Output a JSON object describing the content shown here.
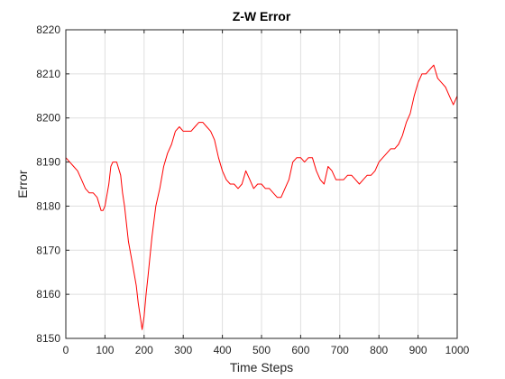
{
  "chart_data": {
    "type": "line",
    "title": "Z-W Error",
    "xlabel": "Time Steps",
    "ylabel": "Error",
    "xlim": [
      0,
      1000
    ],
    "ylim": [
      8150,
      8220
    ],
    "xticks": [
      0,
      100,
      200,
      300,
      400,
      500,
      600,
      700,
      800,
      900,
      1000
    ],
    "yticks": [
      8150,
      8160,
      8170,
      8180,
      8190,
      8200,
      8210,
      8220
    ],
    "grid": true,
    "legend": "none",
    "series_color": "#ff0000",
    "series": [
      {
        "x": [
          0,
          10,
          20,
          30,
          40,
          50,
          60,
          70,
          80,
          90,
          95,
          100,
          110,
          115,
          120,
          130,
          140,
          145,
          150,
          160,
          170,
          180,
          185,
          190,
          195,
          200,
          205,
          210,
          220,
          230,
          240,
          250,
          260,
          270,
          280,
          290,
          300,
          310,
          320,
          330,
          340,
          350,
          360,
          370,
          380,
          390,
          400,
          410,
          420,
          430,
          440,
          450,
          460,
          470,
          480,
          490,
          500,
          510,
          520,
          530,
          540,
          550,
          560,
          570,
          580,
          590,
          600,
          610,
          620,
          630,
          640,
          650,
          660,
          670,
          680,
          690,
          700,
          710,
          720,
          730,
          740,
          750,
          760,
          770,
          780,
          790,
          800,
          810,
          820,
          830,
          840,
          850,
          860,
          870,
          880,
          890,
          900,
          910,
          920,
          930,
          940,
          950,
          960,
          970,
          980,
          990,
          1000
        ],
        "y": [
          8191,
          8190,
          8189,
          8188,
          8186,
          8184,
          8183,
          8183,
          8182,
          8179,
          8179,
          8180,
          8185,
          8189,
          8190,
          8190,
          8187,
          8183,
          8180,
          8172,
          8167,
          8162,
          8158,
          8155,
          8152,
          8155,
          8160,
          8164,
          8173,
          8180,
          8184,
          8189,
          8192,
          8194,
          8197,
          8198,
          8197,
          8197,
          8197,
          8198,
          8199,
          8199,
          8198,
          8197,
          8195,
          8191,
          8188,
          8186,
          8185,
          8185,
          8184,
          8185,
          8188,
          8186,
          8184,
          8185,
          8185,
          8184,
          8184,
          8183,
          8182,
          8182,
          8184,
          8186,
          8190,
          8191,
          8191,
          8190,
          8191,
          8191,
          8188,
          8186,
          8185,
          8189,
          8188,
          8186,
          8186,
          8186,
          8187,
          8187,
          8186,
          8185,
          8186,
          8187,
          8187,
          8188,
          8190,
          8191,
          8192,
          8193,
          8193,
          8194,
          8196,
          8199,
          8201,
          8205,
          8208,
          8210,
          8210,
          8211,
          8212,
          8209,
          8208,
          8207,
          8205,
          8203,
          8205
        ]
      }
    ]
  }
}
